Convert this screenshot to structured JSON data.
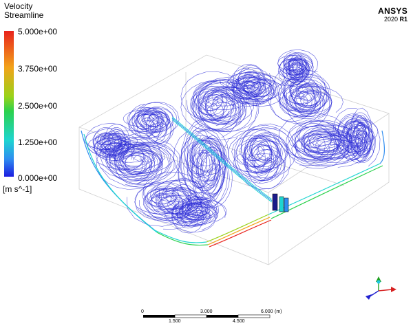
{
  "legend": {
    "title": "Velocity",
    "subtitle": "Streamline",
    "ticks": [
      "5.000e+00",
      "3.750e+00",
      "2.500e+00",
      "1.250e+00",
      "0.000e+00"
    ],
    "units": "[m s^-1]"
  },
  "brand": {
    "name": "ANSYS",
    "version": "2020",
    "release": "R1"
  },
  "scale_bar": {
    "top_labels": [
      "0",
      "3.000",
      "6.000"
    ],
    "unit": "(m)",
    "bottom_labels": [
      "1.500",
      "4.500"
    ]
  },
  "colors": {
    "streamline": "#2a2ad6",
    "box_edge": "#c8c8c8",
    "axis_x": "#d62020",
    "axis_y": "#20a020",
    "axis_z": "#2020d0",
    "axis_origin": "#20c8e0"
  }
}
